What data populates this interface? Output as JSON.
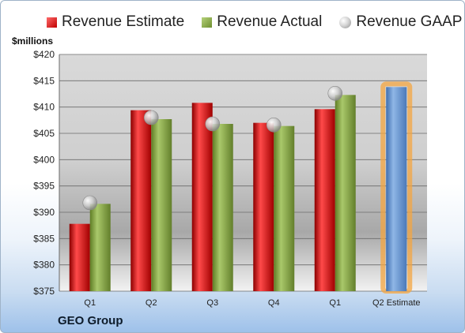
{
  "colors": {
    "estimate": "#c00000",
    "actual": "#7a9a34",
    "gaap": "#a6a6a6",
    "highlight": "#f4a640",
    "future": "#5b8fd0"
  },
  "legend": {
    "estimate_label": "Revenue Estimate",
    "actual_label": "Revenue Actual",
    "gaap_label": "Revenue GAAP"
  },
  "units_label": "$millions",
  "company_label": "GEO Group",
  "chart_data": {
    "type": "bar",
    "categories": [
      "Q1",
      "Q2",
      "Q3",
      "Q4",
      "Q1",
      "Q2 Estimate"
    ],
    "series": [
      {
        "name": "Revenue Estimate",
        "values": [
          387.8,
          409.4,
          410.8,
          407.0,
          409.6,
          413.8
        ]
      },
      {
        "name": "Revenue Actual",
        "values": [
          391.6,
          407.7,
          406.8,
          406.4,
          412.3,
          null
        ]
      },
      {
        "name": "Revenue GAAP",
        "values": [
          391.8,
          408.0,
          406.8,
          406.6,
          412.6,
          null
        ]
      }
    ],
    "ylim": [
      375,
      420
    ],
    "yticks": [
      "$375",
      "$380",
      "$385",
      "$390",
      "$395",
      "$400",
      "$405",
      "$410",
      "$415",
      "$420"
    ],
    "grid": true,
    "legend_position": "top"
  }
}
